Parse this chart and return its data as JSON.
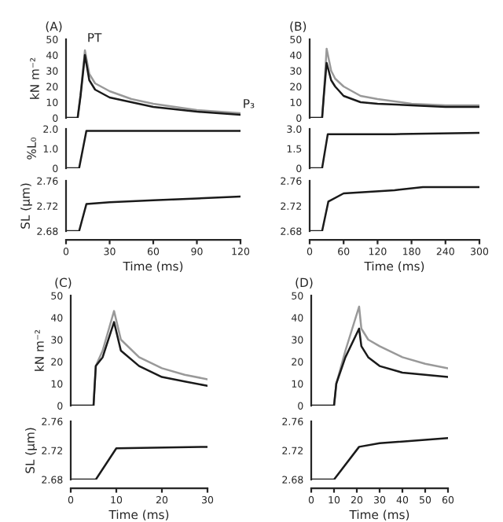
{
  "chart_data": [
    {
      "type": "line",
      "title": "(A)",
      "ylabel": "kN m⁻²",
      "tick_labels": "y",
      "xlim": [
        0,
        120
      ],
      "ylim": [
        0,
        50
      ],
      "yticks": [
        0,
        10,
        20,
        30,
        40,
        50
      ],
      "annotations": [
        {
          "text": "PT",
          "x": 13,
          "y": 44
        },
        {
          "text": "P₃",
          "x": 120,
          "y": 2
        }
      ],
      "series": [
        {
          "color": "#999999",
          "x": [
            0,
            8,
            10,
            13,
            16,
            20,
            30,
            45,
            60,
            90,
            120
          ],
          "values": [
            0,
            0,
            15,
            43,
            28,
            22,
            17,
            12,
            9,
            5,
            3
          ]
        },
        {
          "color": "#1a1a1a",
          "x": [
            0,
            8,
            10,
            13,
            16,
            20,
            30,
            45,
            60,
            90,
            120
          ],
          "values": [
            0,
            0,
            14,
            40,
            24,
            18,
            13,
            10,
            7,
            4,
            2
          ]
        }
      ]
    },
    {
      "type": "line",
      "ylabel": "%L₀",
      "tick_labels": "y",
      "xlim": [
        0,
        120
      ],
      "ylim": [
        0,
        2
      ],
      "yticks": [
        0,
        {
          "value": 1,
          "label": "1.0"
        },
        {
          "value": 2,
          "label": "2.0"
        }
      ],
      "series": [
        {
          "color": "#1a1a1a",
          "x": [
            0,
            9,
            14,
            120
          ],
          "values": [
            0,
            0,
            1.9,
            1.9
          ]
        }
      ]
    },
    {
      "type": "line",
      "ylabel": "SL (μm)",
      "xlabel": "Time (ms)",
      "xlim": [
        0,
        120
      ],
      "xticks": [
        0,
        30,
        60,
        90,
        120
      ],
      "ylim": [
        2.68,
        2.76
      ],
      "yticks": [
        2.68,
        2.72,
        2.76
      ],
      "series": [
        {
          "color": "#1a1a1a",
          "x": [
            0,
            9,
            14,
            30,
            60,
            90,
            120
          ],
          "values": [
            2.68,
            2.68,
            2.723,
            2.726,
            2.729,
            2.732,
            2.735
          ]
        }
      ]
    },
    {
      "type": "line",
      "title": "(B)",
      "tick_labels": "y",
      "xlim": [
        0,
        300
      ],
      "ylim": [
        0,
        50
      ],
      "yticks": [
        0,
        10,
        20,
        30,
        40,
        50
      ],
      "series": [
        {
          "color": "#999999",
          "x": [
            0,
            22,
            25,
            30,
            38,
            45,
            60,
            90,
            120,
            180,
            240,
            300
          ],
          "values": [
            0,
            0,
            15,
            44,
            30,
            25,
            20,
            14,
            12,
            9,
            8,
            8
          ]
        },
        {
          "color": "#1a1a1a",
          "x": [
            0,
            22,
            25,
            30,
            38,
            45,
            60,
            90,
            120,
            180,
            240,
            300
          ],
          "values": [
            0,
            0,
            14,
            35,
            24,
            20,
            14,
            10,
            9,
            8,
            7,
            7
          ]
        }
      ]
    },
    {
      "type": "line",
      "tick_labels": "y",
      "xlim": [
        0,
        300
      ],
      "ylim": [
        0,
        3
      ],
      "yticks": [
        0,
        1.5,
        {
          "value": 3,
          "label": "3.0"
        }
      ],
      "series": [
        {
          "color": "#1a1a1a",
          "x": [
            0,
            22,
            32,
            150,
            300
          ],
          "values": [
            0,
            0,
            2.6,
            2.6,
            2.7
          ]
        }
      ]
    },
    {
      "type": "line",
      "xlabel": "Time (ms)",
      "xlim": [
        0,
        300
      ],
      "xticks": [
        0,
        60,
        120,
        180,
        240,
        300
      ],
      "ylim": [
        2.68,
        2.76
      ],
      "yticks": [
        2.68,
        2.72,
        2.76
      ],
      "series": [
        {
          "color": "#1a1a1a",
          "x": [
            0,
            22,
            33,
            60,
            150,
            200,
            300
          ],
          "values": [
            2.68,
            2.68,
            2.727,
            2.74,
            2.745,
            2.75,
            2.75
          ]
        }
      ]
    },
    {
      "type": "line",
      "title": "(C)",
      "ylabel": "kN m⁻²",
      "tick_labels": "y",
      "xlim": [
        0,
        30
      ],
      "ylim": [
        0,
        50
      ],
      "yticks": [
        0,
        10,
        20,
        30,
        40,
        50
      ],
      "series": [
        {
          "color": "#999999",
          "x": [
            0,
            5,
            5.5,
            7,
            9.5,
            11,
            15,
            20,
            25,
            30
          ],
          "values": [
            0,
            0,
            18,
            25,
            43,
            30,
            22,
            17,
            14,
            12
          ]
        },
        {
          "color": "#1a1a1a",
          "x": [
            0,
            5,
            5.5,
            7,
            9.5,
            11,
            15,
            20,
            25,
            30
          ],
          "values": [
            0,
            0,
            18,
            22,
            38,
            25,
            18,
            13,
            11,
            9
          ]
        }
      ]
    },
    {
      "type": "line",
      "ylabel": "SL (μm)",
      "xlabel": "Time (ms)",
      "xlim": [
        0,
        30
      ],
      "xticks": [
        0,
        10,
        20,
        30
      ],
      "ylim": [
        2.68,
        2.76
      ],
      "yticks": [
        2.68,
        2.72,
        2.76
      ],
      "series": [
        {
          "color": "#1a1a1a",
          "x": [
            0,
            5.5,
            10,
            30
          ],
          "values": [
            2.68,
            2.68,
            2.723,
            2.725
          ]
        }
      ]
    },
    {
      "type": "line",
      "title": "(D)",
      "tick_labels": "y",
      "xlim": [
        0,
        60
      ],
      "ylim": [
        0,
        50
      ],
      "yticks": [
        0,
        10,
        20,
        30,
        40,
        50
      ],
      "series": [
        {
          "color": "#999999",
          "x": [
            0,
            10,
            11,
            15,
            21,
            22,
            25,
            30,
            40,
            50,
            60
          ],
          "values": [
            0,
            0,
            10,
            25,
            45,
            35,
            30,
            27,
            22,
            19,
            17
          ]
        },
        {
          "color": "#1a1a1a",
          "x": [
            0,
            10,
            11,
            15,
            21,
            22,
            25,
            30,
            40,
            50,
            60
          ],
          "values": [
            0,
            0,
            10,
            22,
            35,
            27,
            22,
            18,
            15,
            14,
            13
          ]
        }
      ]
    },
    {
      "type": "line",
      "xlabel": "Time (ms)",
      "xlim": [
        0,
        60
      ],
      "xticks": [
        0,
        10,
        20,
        30,
        40,
        50,
        60
      ],
      "ylim": [
        2.68,
        2.76
      ],
      "yticks": [
        2.68,
        2.72,
        2.76
      ],
      "series": [
        {
          "color": "#1a1a1a",
          "x": [
            0,
            10,
            21,
            30,
            60
          ],
          "values": [
            2.68,
            2.68,
            2.725,
            2.73,
            2.737
          ]
        }
      ]
    }
  ]
}
